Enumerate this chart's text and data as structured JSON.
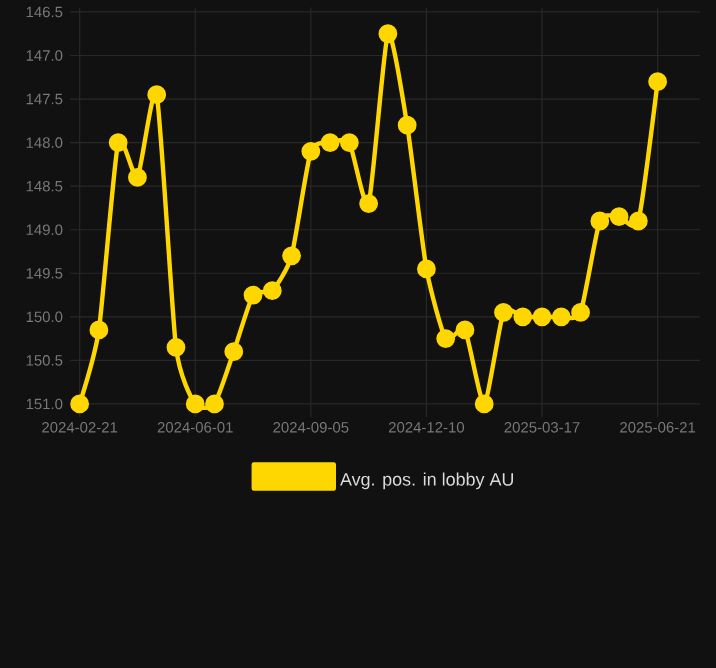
{
  "chart_data": {
    "type": "line",
    "categories": [
      "2024-02-21",
      null,
      null,
      null,
      null,
      null,
      "2024-06-01",
      null,
      null,
      null,
      null,
      null,
      "2024-09-05",
      null,
      null,
      null,
      null,
      null,
      "2024-12-10",
      null,
      null,
      null,
      null,
      null,
      "2025-03-17",
      null,
      null,
      null,
      null,
      null,
      "2025-06-21"
    ],
    "series": [
      {
        "name": "Avg. pos. in lobby AU",
        "color": "#ffd700",
        "values": [
          151.0,
          150.15,
          148.0,
          148.4,
          147.45,
          150.35,
          151.0,
          151.0,
          150.4,
          149.75,
          149.7,
          149.3,
          148.1,
          148.0,
          148.0,
          148.7,
          146.75,
          147.8,
          149.45,
          150.25,
          150.15,
          151.0,
          149.95,
          150.0,
          150.0,
          150.0,
          149.95,
          148.9,
          148.85,
          148.9,
          147.3
        ]
      }
    ],
    "ylim": [
      151.15,
      146.45
    ],
    "yticks": [
      146.5,
      {
        "value": 147,
        "label": "147.0"
      },
      147.5,
      {
        "value": 148,
        "label": "148.0"
      },
      148.5,
      {
        "value": 149,
        "label": "149.0"
      },
      149.5,
      {
        "value": 150,
        "label": "150.0"
      },
      150.5,
      {
        "value": 151,
        "label": "151.0"
      }
    ],
    "grid": true,
    "legend": "bottom",
    "marker": "circle",
    "line_style": "solid"
  }
}
